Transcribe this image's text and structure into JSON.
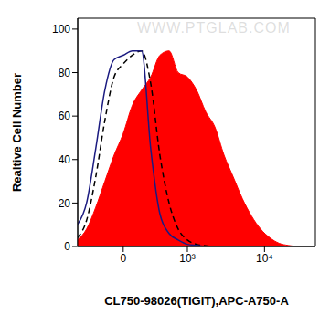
{
  "chart_data": {
    "type": "histogram",
    "xlabel": "CL750-98026(TIGIT),APC-A750-A",
    "ylabel": "Realtive Cell Number",
    "annotations": [
      "WWW.PTGLAB.COM"
    ],
    "x": [
      -556,
      -402,
      -278,
      -175,
      -84,
      0,
      84,
      175,
      278,
      402,
      556,
      750,
      1000,
      1324,
      1746,
      2296,
      3018,
      3961,
      5198,
      6817,
      8940,
      11727,
      15381,
      20170,
      26433
    ],
    "series": [
      {
        "type": "area",
        "color": "#ff0000",
        "values": [
          3,
          8,
          18,
          30,
          42,
          52,
          65,
          72,
          78,
          88,
          90,
          80,
          78,
          72,
          62,
          55,
          42,
          32,
          22,
          14,
          8,
          4,
          1.5,
          0.5,
          0
        ]
      },
      {
        "type": "line",
        "color": "#000000",
        "line_style": "dashed",
        "values": [
          4,
          12,
          32,
          58,
          78,
          84,
          88,
          90,
          75,
          42,
          20,
          8,
          3,
          1,
          0.3,
          0,
          0,
          0,
          0,
          0,
          0,
          0,
          0,
          0,
          0
        ]
      },
      {
        "type": "line",
        "color": "#1a1a80",
        "line_style": "solid",
        "values": [
          10,
          20,
          45,
          72,
          86,
          88,
          90,
          90,
          45,
          15,
          6,
          3,
          1,
          0.5,
          0,
          0,
          0,
          0,
          0,
          0,
          0,
          0,
          0,
          0,
          0
        ]
      }
    ],
    "xlim": [
      -550,
      45000
    ],
    "xticks": [
      {
        "value": 0,
        "label": "0"
      },
      {
        "value": 1000,
        "label": "10³"
      },
      {
        "value": 10000,
        "label": "10⁴"
      }
    ],
    "ylim": [
      0,
      105
    ],
    "yticks": [
      0,
      20,
      40,
      60,
      80,
      100
    ],
    "grid": false
  }
}
